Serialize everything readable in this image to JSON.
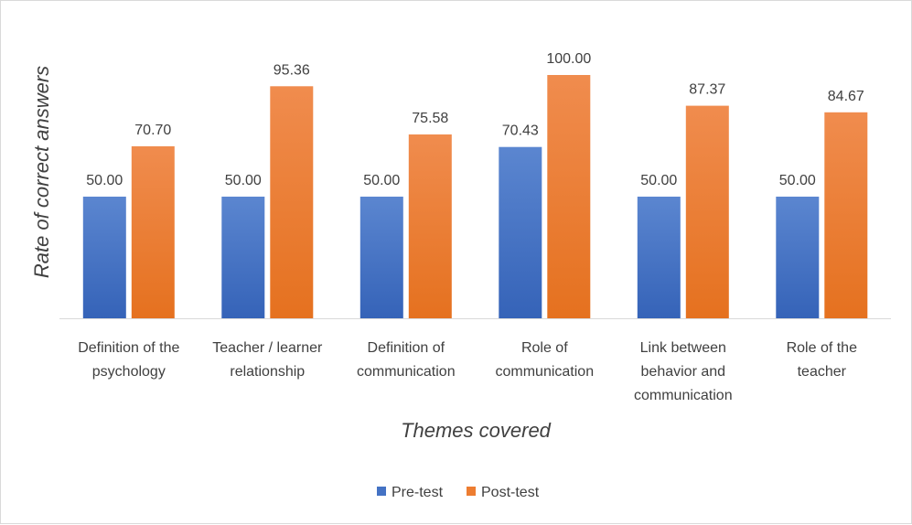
{
  "chart_data": {
    "type": "bar",
    "title": "",
    "xlabel": "Themes covered",
    "ylabel": "Rate of correct answers",
    "ylim": [
      0,
      100
    ],
    "grid": false,
    "legend_position": "bottom",
    "categories": [
      "Definition of the psychology",
      "Teacher / learner relationship",
      "Definition of communication",
      "Role of communication",
      "Link between behavior and communication",
      "Role of the teacher"
    ],
    "category_lines": [
      [
        "Definition of the",
        "psychology"
      ],
      [
        "Teacher / learner",
        "relationship"
      ],
      [
        "Definition of",
        "communication"
      ],
      [
        "Role of",
        "communication"
      ],
      [
        "Link between",
        "behavior and",
        "communication"
      ],
      [
        "Role of the",
        "teacher"
      ]
    ],
    "series": [
      {
        "name": "Pre-test",
        "color": "#4472C4",
        "values": [
          50.0,
          50.0,
          50.0,
          70.43,
          50.0,
          50.0
        ],
        "labels": [
          "50.00",
          "50.00",
          "50.00",
          "70.43",
          "50.00",
          "50.00"
        ]
      },
      {
        "name": "Post-test",
        "color": "#ED7D31",
        "values": [
          70.7,
          95.36,
          75.58,
          100.0,
          87.37,
          84.67
        ],
        "labels": [
          "70.70",
          "95.36",
          "75.58",
          "100.00",
          "87.37",
          "84.67"
        ]
      }
    ]
  }
}
